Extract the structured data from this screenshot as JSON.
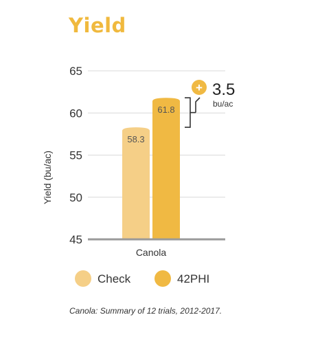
{
  "page_title": "Yield",
  "footnote": "Canola: Summary of 12 trials, 2012-2017.",
  "colors": {
    "title": "#f0b93e",
    "check": "#f5cf87",
    "product": "#f0b943",
    "grid": "#d9d9d9",
    "axis": "#9a9a9a",
    "bracket": "#333333"
  },
  "chart_data": {
    "type": "bar",
    "title": "Yield",
    "xlabel": "",
    "ylabel": "Yield (bu/ac)",
    "ylim": [
      45,
      65
    ],
    "yticks": [
      45,
      50,
      55,
      60,
      65
    ],
    "categories": [
      "Canola"
    ],
    "series": [
      {
        "name": "Check",
        "values": [
          58.3
        ]
      },
      {
        "name": "42PHI",
        "values": [
          61.8
        ]
      }
    ],
    "annotation": {
      "value": "3.5",
      "unit": "bu/ac",
      "symbol": "+"
    },
    "grid": true,
    "legend": "bottom"
  }
}
